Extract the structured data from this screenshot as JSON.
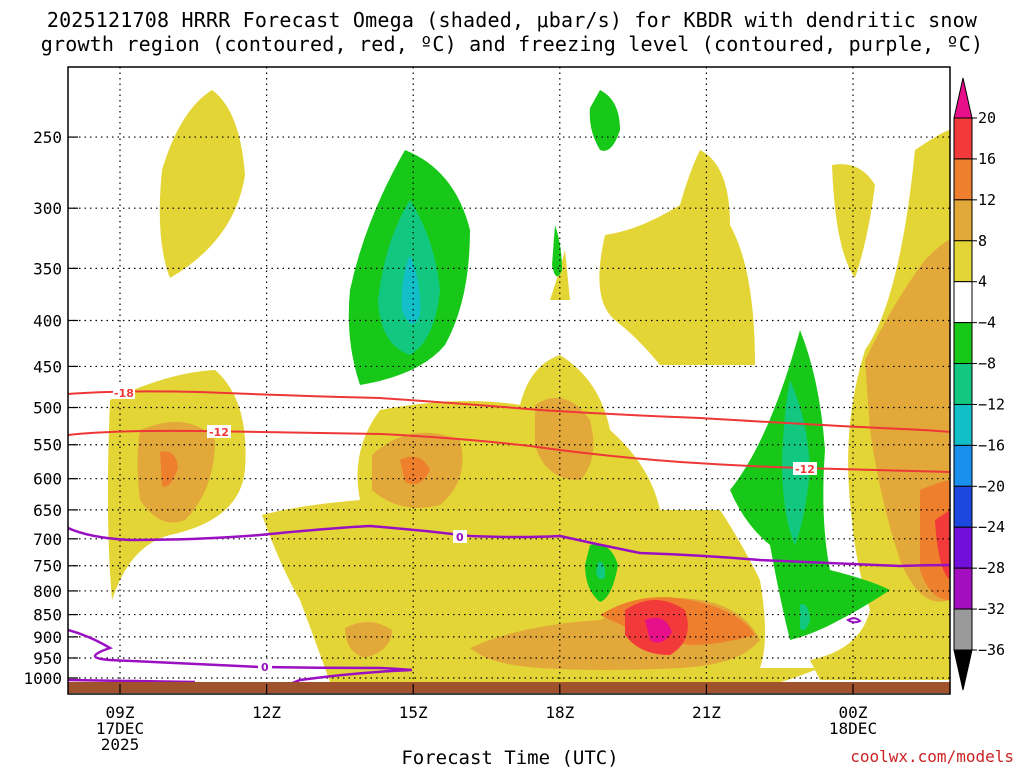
{
  "title_line1": "2025121708 HRRR Forecast Omega (shaded, μbar/s) for KBDR with dendritic snow",
  "title_line2": "growth region (contoured, red, ºC) and freezing level (contoured, purple, ºC)",
  "credit": "coolwx.com/models",
  "chart_data": {
    "type": "heatmap",
    "title": "2025121708 HRRR Forecast Omega (shaded, μbar/s) for KBDR with dendritic snow growth region (contoured, red, ºC) and freezing level (contoured, purple, ºC)",
    "xlabel": "Forecast Time (UTC)",
    "ylabel": "",
    "y_scale": "log-pressure (hPa, inverted)",
    "ylim": [
      1000,
      200
    ],
    "x_ticks": [
      {
        "line1": "09Z",
        "line2": "17DEC",
        "line3": "2025",
        "hour": 9
      },
      {
        "line1": "12Z",
        "line2": "",
        "line3": "",
        "hour": 12
      },
      {
        "line1": "15Z",
        "line2": "",
        "line3": "",
        "hour": 15
      },
      {
        "line1": "18Z",
        "line2": "",
        "line3": "",
        "hour": 18
      },
      {
        "line1": "21Z",
        "line2": "",
        "line3": "",
        "hour": 21
      },
      {
        "line1": "00Z",
        "line2": "18DEC",
        "line3": "",
        "hour": 24
      }
    ],
    "y_ticks": [
      250,
      300,
      350,
      400,
      450,
      500,
      550,
      600,
      650,
      700,
      750,
      800,
      850,
      900,
      950,
      1000
    ],
    "grid": true,
    "colorbar": {
      "labels": [
        "20",
        "16",
        "12",
        "8",
        "4",
        "−4",
        "−8",
        "−12",
        "−16",
        "−20",
        "−24",
        "−28",
        "−32",
        "−36"
      ],
      "colors_top_to_bottom": [
        "#e8108a",
        "#f23a3a",
        "#ee7f2c",
        "#e3a83a",
        "#e4d536",
        "#ffffff",
        "#18c818",
        "#12c880",
        "#12bec8",
        "#1a90ee",
        "#1c48e0",
        "#7010d8",
        "#a20ec0",
        "#9a9a9a",
        "#000000"
      ]
    },
    "contours": [
      {
        "name": "-18",
        "color": "#ee3838"
      },
      {
        "name": "-12",
        "color": "#ee3838"
      },
      {
        "name": "0",
        "color": "#9a10c0"
      }
    ],
    "terrain_color": "#a0522d"
  }
}
